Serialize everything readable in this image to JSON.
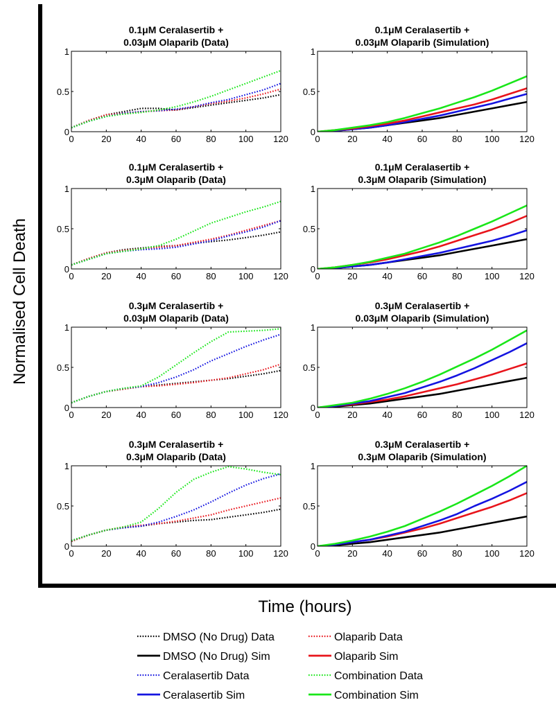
{
  "figure": {
    "ylabel": "Normalised Cell Death",
    "xlabel": "Time (hours)"
  },
  "colors": {
    "dmso": "#000000",
    "olaparib": "#e8141b",
    "ceralasertib": "#1414e0",
    "combination": "#19e619"
  },
  "legend": [
    {
      "label": "DMSO (No Drug) Data",
      "color": "#000000",
      "style": "dotted"
    },
    {
      "label": "Olaparib Data",
      "color": "#e8141b",
      "style": "dotted"
    },
    {
      "label": "DMSO (No Drug) Sim",
      "color": "#000000",
      "style": "solid"
    },
    {
      "label": "Olaparib Sim",
      "color": "#e8141b",
      "style": "solid"
    },
    {
      "label": "Ceralasertib Data",
      "color": "#1414e0",
      "style": "dotted"
    },
    {
      "label": "Combination Data",
      "color": "#19e619",
      "style": "dotted"
    },
    {
      "label": "Ceralasertib Sim",
      "color": "#1414e0",
      "style": "solid"
    },
    {
      "label": "Combination Sim",
      "color": "#19e619",
      "style": "solid"
    }
  ],
  "chart_data": [
    {
      "type": "line",
      "title": [
        "0.1μM Ceralasertib +",
        "0.03μM Olaparib (Data)"
      ],
      "xlim": [
        0,
        120
      ],
      "ylim": [
        0,
        1
      ],
      "xticks": [
        "0",
        "20",
        "40",
        "60",
        "80",
        "100",
        "120"
      ],
      "yticks": [
        "0",
        "0.5",
        "1"
      ],
      "x": [
        0,
        10,
        20,
        30,
        40,
        50,
        60,
        70,
        80,
        90,
        100,
        110,
        120
      ],
      "series": [
        {
          "key": "dmso",
          "style": "dotted",
          "values": [
            0.05,
            0.14,
            0.21,
            0.25,
            0.29,
            0.29,
            0.27,
            0.3,
            0.33,
            0.36,
            0.39,
            0.42,
            0.46
          ]
        },
        {
          "key": "olaparib",
          "style": "dotted",
          "values": [
            0.05,
            0.14,
            0.21,
            0.23,
            0.25,
            0.26,
            0.27,
            0.31,
            0.35,
            0.38,
            0.42,
            0.47,
            0.53
          ]
        },
        {
          "key": "ceralasertib",
          "style": "dotted",
          "values": [
            0.05,
            0.13,
            0.19,
            0.23,
            0.25,
            0.26,
            0.28,
            0.31,
            0.36,
            0.4,
            0.46,
            0.52,
            0.6
          ]
        },
        {
          "key": "combination",
          "style": "dotted",
          "values": [
            0.05,
            0.13,
            0.19,
            0.22,
            0.24,
            0.27,
            0.31,
            0.37,
            0.44,
            0.52,
            0.6,
            0.68,
            0.76
          ]
        }
      ]
    },
    {
      "type": "line",
      "title": [
        "0.1μM Ceralasertib +",
        "0.03μM Olaparib (Simulation)"
      ],
      "xlim": [
        0,
        120
      ],
      "ylim": [
        0,
        1
      ],
      "xticks": [
        "0",
        "20",
        "40",
        "60",
        "80",
        "100",
        "120"
      ],
      "yticks": [
        "0",
        "0.5",
        "1"
      ],
      "x": [
        0,
        10,
        20,
        30,
        40,
        50,
        60,
        70,
        80,
        90,
        100,
        110,
        120
      ],
      "series": [
        {
          "key": "dmso",
          "style": "solid",
          "values": [
            0,
            0.01,
            0.03,
            0.05,
            0.08,
            0.11,
            0.14,
            0.17,
            0.21,
            0.25,
            0.29,
            0.33,
            0.37
          ]
        },
        {
          "key": "ceralasertib",
          "style": "solid",
          "values": [
            0,
            0.01,
            0.03,
            0.05,
            0.08,
            0.12,
            0.16,
            0.2,
            0.25,
            0.3,
            0.35,
            0.41,
            0.47
          ]
        },
        {
          "key": "olaparib",
          "style": "solid",
          "values": [
            0,
            0.02,
            0.04,
            0.07,
            0.1,
            0.14,
            0.19,
            0.24,
            0.29,
            0.34,
            0.4,
            0.47,
            0.54
          ]
        },
        {
          "key": "combination",
          "style": "solid",
          "values": [
            0,
            0.02,
            0.05,
            0.08,
            0.12,
            0.17,
            0.23,
            0.29,
            0.36,
            0.43,
            0.51,
            0.6,
            0.69
          ]
        }
      ]
    },
    {
      "type": "line",
      "title": [
        "0.1μM Ceralasertib +",
        "0.3μM Olaparib (Data)"
      ],
      "xlim": [
        0,
        120
      ],
      "ylim": [
        0,
        1
      ],
      "xticks": [
        "0",
        "20",
        "40",
        "60",
        "80",
        "100",
        "120"
      ],
      "yticks": [
        "0",
        "0.5",
        "1"
      ],
      "x": [
        0,
        10,
        20,
        30,
        40,
        50,
        60,
        70,
        80,
        90,
        100,
        110,
        120
      ],
      "series": [
        {
          "key": "dmso",
          "style": "dotted",
          "values": [
            0.05,
            0.13,
            0.2,
            0.24,
            0.26,
            0.28,
            0.29,
            0.32,
            0.34,
            0.36,
            0.39,
            0.42,
            0.46
          ]
        },
        {
          "key": "olaparib",
          "style": "dotted",
          "values": [
            0.05,
            0.13,
            0.2,
            0.23,
            0.25,
            0.27,
            0.29,
            0.33,
            0.37,
            0.42,
            0.48,
            0.54,
            0.6
          ]
        },
        {
          "key": "ceralasertib",
          "style": "dotted",
          "values": [
            0.05,
            0.12,
            0.19,
            0.22,
            0.24,
            0.25,
            0.27,
            0.31,
            0.35,
            0.41,
            0.46,
            0.52,
            0.6
          ]
        },
        {
          "key": "combination",
          "style": "dotted",
          "values": [
            0.05,
            0.12,
            0.19,
            0.22,
            0.25,
            0.29,
            0.37,
            0.47,
            0.57,
            0.64,
            0.71,
            0.77,
            0.84
          ]
        }
      ]
    },
    {
      "type": "line",
      "title": [
        "0.1μM Ceralasertib +",
        "0.3μM Olaparib (Simulation)"
      ],
      "xlim": [
        0,
        120
      ],
      "ylim": [
        0,
        1
      ],
      "xticks": [
        "0",
        "20",
        "40",
        "60",
        "80",
        "100",
        "120"
      ],
      "yticks": [
        "0",
        "0.5",
        "1"
      ],
      "x": [
        0,
        10,
        20,
        30,
        40,
        50,
        60,
        70,
        80,
        90,
        100,
        110,
        120
      ],
      "series": [
        {
          "key": "dmso",
          "style": "solid",
          "values": [
            0,
            0.01,
            0.03,
            0.05,
            0.08,
            0.11,
            0.14,
            0.17,
            0.21,
            0.25,
            0.29,
            0.33,
            0.37
          ]
        },
        {
          "key": "ceralasertib",
          "style": "solid",
          "values": [
            0,
            0.01,
            0.03,
            0.05,
            0.08,
            0.12,
            0.16,
            0.2,
            0.25,
            0.3,
            0.35,
            0.41,
            0.48
          ]
        },
        {
          "key": "olaparib",
          "style": "solid",
          "values": [
            0,
            0.02,
            0.05,
            0.08,
            0.12,
            0.17,
            0.22,
            0.28,
            0.35,
            0.42,
            0.49,
            0.57,
            0.66
          ]
        },
        {
          "key": "combination",
          "style": "solid",
          "values": [
            0,
            0.02,
            0.05,
            0.09,
            0.14,
            0.19,
            0.26,
            0.33,
            0.41,
            0.5,
            0.59,
            0.69,
            0.79
          ]
        }
      ]
    },
    {
      "type": "line",
      "title": [
        "0.3μM Ceralasertib +",
        "0.03μM Olaparib (Data)"
      ],
      "xlim": [
        0,
        120
      ],
      "ylim": [
        0,
        1
      ],
      "xticks": [
        "0",
        "20",
        "40",
        "60",
        "80",
        "100",
        "120"
      ],
      "yticks": [
        "0",
        "0.5",
        "1"
      ],
      "x": [
        0,
        10,
        20,
        30,
        40,
        50,
        60,
        70,
        80,
        90,
        100,
        110,
        120
      ],
      "series": [
        {
          "key": "dmso",
          "style": "dotted",
          "values": [
            0.06,
            0.14,
            0.2,
            0.23,
            0.26,
            0.28,
            0.3,
            0.32,
            0.34,
            0.36,
            0.39,
            0.42,
            0.46
          ]
        },
        {
          "key": "olaparib",
          "style": "dotted",
          "values": [
            0.06,
            0.14,
            0.2,
            0.23,
            0.26,
            0.27,
            0.29,
            0.31,
            0.34,
            0.37,
            0.42,
            0.47,
            0.54
          ]
        },
        {
          "key": "ceralasertib",
          "style": "dotted",
          "values": [
            0.06,
            0.14,
            0.2,
            0.24,
            0.26,
            0.31,
            0.38,
            0.47,
            0.58,
            0.67,
            0.76,
            0.84,
            0.91
          ]
        },
        {
          "key": "combination",
          "style": "dotted",
          "values": [
            0.06,
            0.14,
            0.2,
            0.24,
            0.27,
            0.38,
            0.53,
            0.68,
            0.82,
            0.94,
            0.95,
            0.96,
            0.98
          ]
        }
      ]
    },
    {
      "type": "line",
      "title": [
        "0.3μM Ceralasertib +",
        "0.03μM Olaparib (Simulation)"
      ],
      "xlim": [
        0,
        120
      ],
      "ylim": [
        0,
        1
      ],
      "xticks": [
        "0",
        "20",
        "40",
        "60",
        "80",
        "100",
        "120"
      ],
      "yticks": [
        "0",
        "0.5",
        "1"
      ],
      "x": [
        0,
        10,
        20,
        30,
        40,
        50,
        60,
        70,
        80,
        90,
        100,
        110,
        120
      ],
      "series": [
        {
          "key": "dmso",
          "style": "solid",
          "values": [
            0,
            0.01,
            0.03,
            0.05,
            0.08,
            0.11,
            0.14,
            0.17,
            0.21,
            0.25,
            0.29,
            0.33,
            0.37
          ]
        },
        {
          "key": "olaparib",
          "style": "solid",
          "values": [
            0,
            0.02,
            0.04,
            0.07,
            0.1,
            0.14,
            0.19,
            0.24,
            0.29,
            0.35,
            0.41,
            0.48,
            0.55
          ]
        },
        {
          "key": "ceralasertib",
          "style": "solid",
          "values": [
            0,
            0.02,
            0.05,
            0.08,
            0.13,
            0.18,
            0.25,
            0.32,
            0.4,
            0.49,
            0.59,
            0.69,
            0.8
          ]
        },
        {
          "key": "combination",
          "style": "solid",
          "values": [
            0,
            0.03,
            0.06,
            0.11,
            0.17,
            0.24,
            0.32,
            0.41,
            0.51,
            0.61,
            0.72,
            0.84,
            0.96
          ]
        }
      ]
    },
    {
      "type": "line",
      "title": [
        "0.3μM Ceralasertib +",
        "0.3μM Olaparib (Data)"
      ],
      "xlim": [
        0,
        120
      ],
      "ylim": [
        0,
        1
      ],
      "xticks": [
        "0",
        "20",
        "40",
        "60",
        "80",
        "100",
        "120"
      ],
      "yticks": [
        "0",
        "0.5",
        "1"
      ],
      "x": [
        0,
        10,
        20,
        30,
        40,
        50,
        60,
        70,
        80,
        90,
        100,
        110,
        120
      ],
      "series": [
        {
          "key": "dmso",
          "style": "dotted",
          "values": [
            0.06,
            0.14,
            0.2,
            0.23,
            0.25,
            0.28,
            0.3,
            0.32,
            0.33,
            0.36,
            0.39,
            0.42,
            0.46
          ]
        },
        {
          "key": "olaparib",
          "style": "dotted",
          "values": [
            0.06,
            0.14,
            0.2,
            0.24,
            0.26,
            0.28,
            0.31,
            0.35,
            0.39,
            0.45,
            0.5,
            0.55,
            0.6
          ]
        },
        {
          "key": "ceralasertib",
          "style": "dotted",
          "values": [
            0.07,
            0.14,
            0.2,
            0.23,
            0.25,
            0.3,
            0.37,
            0.45,
            0.55,
            0.66,
            0.76,
            0.84,
            0.9
          ]
        },
        {
          "key": "combination",
          "style": "dotted",
          "values": [
            0.07,
            0.14,
            0.2,
            0.24,
            0.3,
            0.47,
            0.67,
            0.83,
            0.92,
            0.99,
            0.96,
            0.92,
            0.89
          ]
        }
      ]
    },
    {
      "type": "line",
      "title": [
        "0.3μM Ceralasertib +",
        "0.3μM Olaparib (Simulation)"
      ],
      "xlim": [
        0,
        120
      ],
      "ylim": [
        0,
        1
      ],
      "xticks": [
        "0",
        "20",
        "40",
        "60",
        "80",
        "100",
        "120"
      ],
      "yticks": [
        "0",
        "0.5",
        "1"
      ],
      "x": [
        0,
        10,
        20,
        30,
        40,
        50,
        60,
        70,
        80,
        90,
        100,
        110,
        120
      ],
      "series": [
        {
          "key": "dmso",
          "style": "solid",
          "values": [
            0,
            0.01,
            0.03,
            0.05,
            0.08,
            0.11,
            0.14,
            0.17,
            0.21,
            0.25,
            0.29,
            0.33,
            0.37
          ]
        },
        {
          "key": "olaparib",
          "style": "solid",
          "values": [
            0,
            0.02,
            0.05,
            0.08,
            0.12,
            0.17,
            0.22,
            0.28,
            0.35,
            0.42,
            0.49,
            0.57,
            0.66
          ]
        },
        {
          "key": "ceralasertib",
          "style": "solid",
          "values": [
            0,
            0.02,
            0.05,
            0.08,
            0.13,
            0.18,
            0.25,
            0.32,
            0.4,
            0.5,
            0.59,
            0.69,
            0.8
          ]
        },
        {
          "key": "combination",
          "style": "solid",
          "values": [
            0,
            0.03,
            0.07,
            0.12,
            0.18,
            0.25,
            0.34,
            0.43,
            0.53,
            0.64,
            0.75,
            0.87,
            1.0
          ]
        }
      ]
    }
  ]
}
